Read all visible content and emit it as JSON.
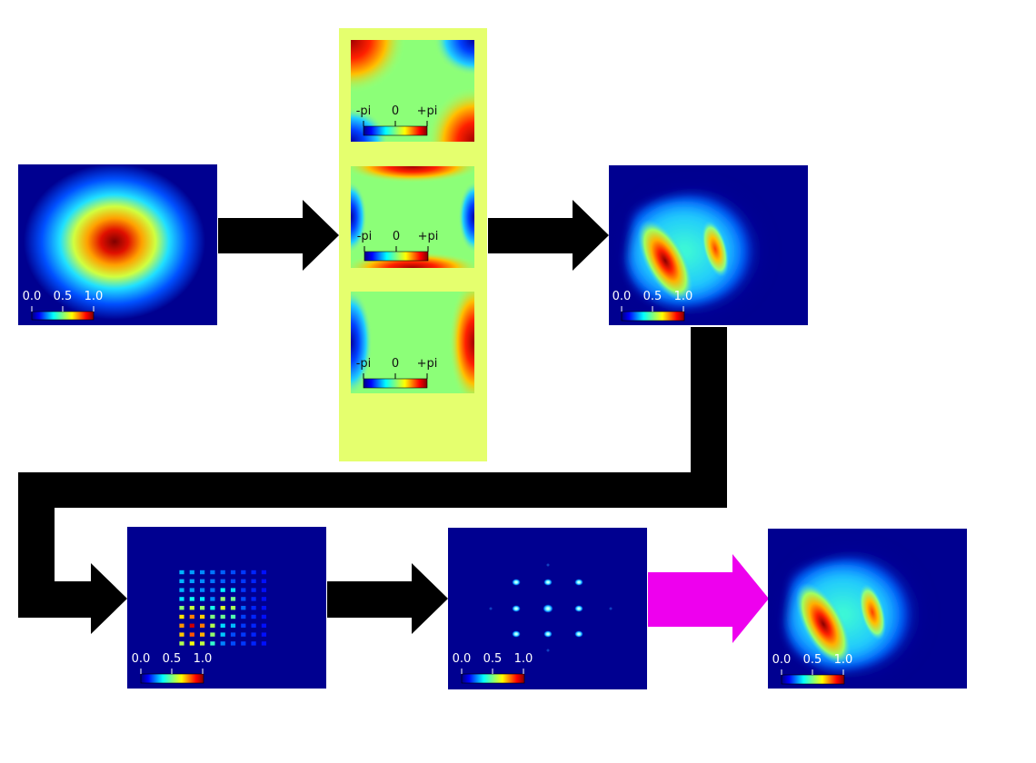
{
  "intensity_scale": {
    "min": "0.0",
    "mid": "0.5",
    "max": "1.0"
  },
  "phase_scale": {
    "min": "-pi",
    "mid": "0",
    "max": "+pi"
  },
  "colors": {
    "background": "#ffffff",
    "field_background": "#000080",
    "phase_panel": "#e5ff6e",
    "arrow": "#000000",
    "highlight_arrow": "#ee00ee",
    "intensity_label": "#ffffff",
    "phase_label": "#111111"
  },
  "icons": {
    "arrow": "right-arrow-icon",
    "connector": "elbow-connector-icon"
  }
}
